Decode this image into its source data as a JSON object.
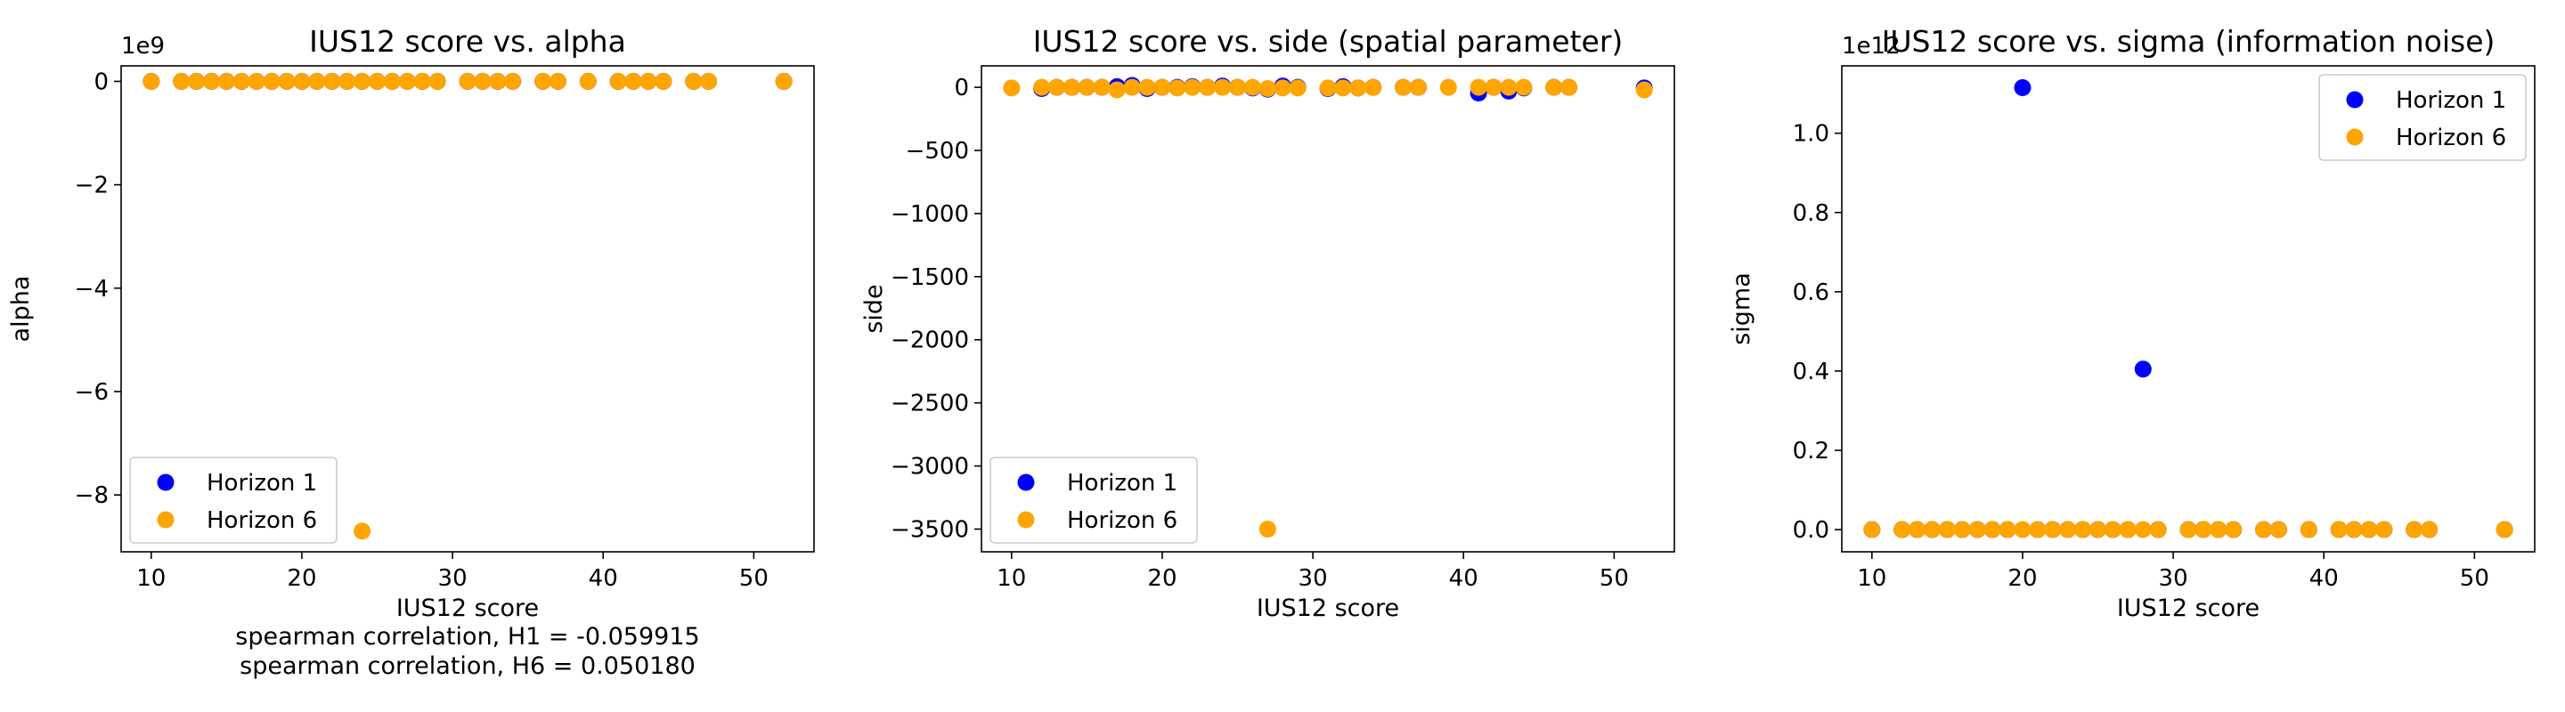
{
  "colors": {
    "horizon1": "#0000ff",
    "horizon6": "#ffa500"
  },
  "charts": [
    {
      "id": "alpha",
      "title": "IUS12 score vs. alpha",
      "xlabel": "IUS12 score",
      "ylabel": "alpha",
      "offset_text": "1e9",
      "xlim": [
        8,
        54
      ],
      "ylim": [
        -9.1,
        0.3
      ],
      "xticks": [
        10,
        20,
        30,
        40,
        50
      ],
      "xtick_labels": [
        "10",
        "20",
        "30",
        "40",
        "50"
      ],
      "yticks": [
        0,
        -2,
        -4,
        -6,
        -8
      ],
      "ytick_labels": [
        "0",
        "−2",
        "−4",
        "−6",
        "−8"
      ],
      "legend_position": "lower-left",
      "notes": [
        "spearman correlation, H1 = -0.059915",
        "spearman correlation, H6 = 0.050180"
      ]
    },
    {
      "id": "side",
      "title": "IUS12 score vs. side (spatial parameter)",
      "xlabel": "IUS12 score",
      "ylabel": "side",
      "offset_text": "",
      "xlim": [
        8,
        54
      ],
      "ylim": [
        -3680,
        170
      ],
      "xticks": [
        10,
        20,
        30,
        40,
        50
      ],
      "xtick_labels": [
        "10",
        "20",
        "30",
        "40",
        "50"
      ],
      "yticks": [
        0,
        -500,
        -1000,
        -1500,
        -2000,
        -2500,
        -3000,
        -3500
      ],
      "ytick_labels": [
        "0",
        "−500",
        "−1000",
        "−1500",
        "−2000",
        "−2500",
        "−3000",
        "−3500"
      ],
      "legend_position": "lower-left",
      "notes": []
    },
    {
      "id": "sigma",
      "title": "IUS12 score vs. sigma (information noise)",
      "xlabel": "IUS12 score",
      "ylabel": "sigma",
      "offset_text": "1e12",
      "xlim": [
        8,
        54
      ],
      "ylim": [
        -0.056,
        1.17
      ],
      "xticks": [
        10,
        20,
        30,
        40,
        50
      ],
      "xtick_labels": [
        "10",
        "20",
        "30",
        "40",
        "50"
      ],
      "yticks": [
        0,
        0.2,
        0.4,
        0.6,
        0.8,
        1.0
      ],
      "ytick_labels": [
        "0.0",
        "0.2",
        "0.4",
        "0.6",
        "0.8",
        "1.0"
      ],
      "legend_position": "upper-right",
      "notes": []
    }
  ],
  "chart_data": [
    {
      "type": "scatter",
      "title": "IUS12 score vs. alpha",
      "xlabel": "IUS12 score",
      "ylabel": "alpha",
      "y_scale_factor": "1e9",
      "xlim": [
        8,
        54
      ],
      "ylim": [
        -9.1,
        0.3
      ],
      "legend_position": "lower-left",
      "series": [
        {
          "name": "Horizon 1",
          "color": "#0000ff",
          "points": [
            [
              10,
              0
            ],
            [
              12,
              0
            ],
            [
              13,
              0
            ],
            [
              14,
              0
            ],
            [
              15,
              0
            ],
            [
              16,
              0
            ],
            [
              17,
              0
            ],
            [
              18,
              0
            ],
            [
              19,
              0
            ],
            [
              20,
              0
            ],
            [
              21,
              0
            ],
            [
              22,
              0
            ],
            [
              23,
              0
            ],
            [
              24,
              0
            ],
            [
              25,
              0
            ],
            [
              26,
              0
            ],
            [
              27,
              0
            ],
            [
              28,
              0
            ],
            [
              29,
              0
            ],
            [
              31,
              0
            ],
            [
              32,
              0
            ],
            [
              33,
              0
            ],
            [
              34,
              0
            ],
            [
              36,
              0
            ],
            [
              37,
              0
            ],
            [
              39,
              0
            ],
            [
              41,
              0
            ],
            [
              42,
              0
            ],
            [
              43,
              0
            ],
            [
              44,
              0
            ],
            [
              46,
              0
            ],
            [
              47,
              0
            ],
            [
              52,
              0
            ]
          ]
        },
        {
          "name": "Horizon 6",
          "color": "#ffa500",
          "points": [
            [
              10,
              0
            ],
            [
              12,
              0
            ],
            [
              13,
              0
            ],
            [
              14,
              0
            ],
            [
              15,
              0
            ],
            [
              16,
              0
            ],
            [
              17,
              0
            ],
            [
              18,
              0
            ],
            [
              19,
              0
            ],
            [
              20,
              0
            ],
            [
              21,
              0
            ],
            [
              22,
              0
            ],
            [
              23,
              0
            ],
            [
              24,
              0
            ],
            [
              24,
              -8.7
            ],
            [
              25,
              0
            ],
            [
              26,
              0
            ],
            [
              27,
              0
            ],
            [
              28,
              0
            ],
            [
              29,
              0
            ],
            [
              31,
              0
            ],
            [
              32,
              0
            ],
            [
              33,
              0
            ],
            [
              34,
              0
            ],
            [
              36,
              0
            ],
            [
              37,
              0
            ],
            [
              39,
              0
            ],
            [
              41,
              0
            ],
            [
              42,
              0
            ],
            [
              43,
              0
            ],
            [
              44,
              0
            ],
            [
              46,
              0
            ],
            [
              47,
              0
            ],
            [
              52,
              0
            ]
          ]
        }
      ]
    },
    {
      "type": "scatter",
      "title": "IUS12 score vs. side (spatial parameter)",
      "xlabel": "IUS12 score",
      "ylabel": "side",
      "xlim": [
        8,
        54
      ],
      "ylim": [
        -3680,
        170
      ],
      "legend_position": "lower-left",
      "series": [
        {
          "name": "Horizon 1",
          "color": "#0000ff",
          "points": [
            [
              12,
              -10
            ],
            [
              13,
              0
            ],
            [
              14,
              0
            ],
            [
              15,
              0
            ],
            [
              16,
              0
            ],
            [
              17,
              5
            ],
            [
              18,
              15
            ],
            [
              19,
              -10
            ],
            [
              20,
              0
            ],
            [
              21,
              0
            ],
            [
              22,
              5
            ],
            [
              23,
              0
            ],
            [
              24,
              10
            ],
            [
              25,
              0
            ],
            [
              26,
              -5
            ],
            [
              27,
              -15
            ],
            [
              28,
              10
            ],
            [
              29,
              0
            ],
            [
              31,
              -10
            ],
            [
              32,
              5
            ],
            [
              33,
              -5
            ],
            [
              34,
              0
            ],
            [
              36,
              0
            ],
            [
              37,
              0
            ],
            [
              41,
              -45
            ],
            [
              42,
              0
            ],
            [
              43,
              -30
            ],
            [
              44,
              -5
            ],
            [
              46,
              0
            ],
            [
              47,
              0
            ],
            [
              52,
              -5
            ]
          ]
        },
        {
          "name": "Horizon 6",
          "color": "#ffa500",
          "points": [
            [
              10,
              -5
            ],
            [
              12,
              0
            ],
            [
              13,
              0
            ],
            [
              14,
              0
            ],
            [
              15,
              0
            ],
            [
              16,
              0
            ],
            [
              17,
              -20
            ],
            [
              18,
              0
            ],
            [
              19,
              0
            ],
            [
              20,
              0
            ],
            [
              21,
              -5
            ],
            [
              22,
              0
            ],
            [
              23,
              0
            ],
            [
              24,
              0
            ],
            [
              25,
              0
            ],
            [
              26,
              0
            ],
            [
              27,
              -10
            ],
            [
              27,
              -3500
            ],
            [
              28,
              -5
            ],
            [
              29,
              -5
            ],
            [
              31,
              -5
            ],
            [
              32,
              -5
            ],
            [
              33,
              -5
            ],
            [
              34,
              0
            ],
            [
              36,
              0
            ],
            [
              37,
              0
            ],
            [
              39,
              0
            ],
            [
              41,
              0
            ],
            [
              42,
              0
            ],
            [
              43,
              0
            ],
            [
              44,
              0
            ],
            [
              46,
              0
            ],
            [
              47,
              0
            ],
            [
              52,
              -20
            ]
          ]
        }
      ]
    },
    {
      "type": "scatter",
      "title": "IUS12 score vs. sigma (information noise)",
      "xlabel": "IUS12 score",
      "ylabel": "sigma",
      "y_scale_factor": "1e12",
      "xlim": [
        8,
        54
      ],
      "ylim": [
        -0.056,
        1.17
      ],
      "legend_position": "upper-right",
      "series": [
        {
          "name": "Horizon 1",
          "color": "#0000ff",
          "points": [
            [
              10,
              0
            ],
            [
              12,
              0
            ],
            [
              13,
              0
            ],
            [
              14,
              0
            ],
            [
              15,
              0
            ],
            [
              16,
              0
            ],
            [
              17,
              0
            ],
            [
              18,
              0
            ],
            [
              19,
              0
            ],
            [
              20,
              1.115
            ],
            [
              21,
              0
            ],
            [
              22,
              0
            ],
            [
              23,
              0
            ],
            [
              24,
              0
            ],
            [
              25,
              0
            ],
            [
              26,
              0
            ],
            [
              27,
              0
            ],
            [
              28,
              0.405
            ],
            [
              29,
              0
            ],
            [
              31,
              0
            ],
            [
              32,
              0
            ],
            [
              33,
              0
            ],
            [
              34,
              0
            ],
            [
              36,
              0
            ],
            [
              37,
              0
            ],
            [
              39,
              0
            ],
            [
              41,
              0
            ],
            [
              42,
              0
            ],
            [
              43,
              0
            ],
            [
              44,
              0
            ],
            [
              46,
              0
            ],
            [
              47,
              0
            ],
            [
              52,
              0
            ]
          ]
        },
        {
          "name": "Horizon 6",
          "color": "#ffa500",
          "points": [
            [
              10,
              0
            ],
            [
              12,
              0
            ],
            [
              13,
              0
            ],
            [
              14,
              0
            ],
            [
              15,
              0
            ],
            [
              16,
              0
            ],
            [
              17,
              0
            ],
            [
              18,
              0
            ],
            [
              19,
              0
            ],
            [
              20,
              0
            ],
            [
              21,
              0
            ],
            [
              22,
              0
            ],
            [
              23,
              0
            ],
            [
              24,
              0
            ],
            [
              25,
              0
            ],
            [
              26,
              0
            ],
            [
              27,
              0
            ],
            [
              28,
              0
            ],
            [
              29,
              0
            ],
            [
              31,
              0
            ],
            [
              32,
              0
            ],
            [
              33,
              0
            ],
            [
              34,
              0
            ],
            [
              36,
              0
            ],
            [
              37,
              0
            ],
            [
              39,
              0
            ],
            [
              41,
              0
            ],
            [
              42,
              0
            ],
            [
              43,
              0
            ],
            [
              44,
              0
            ],
            [
              46,
              0
            ],
            [
              47,
              0
            ],
            [
              52,
              0
            ]
          ]
        }
      ]
    }
  ]
}
